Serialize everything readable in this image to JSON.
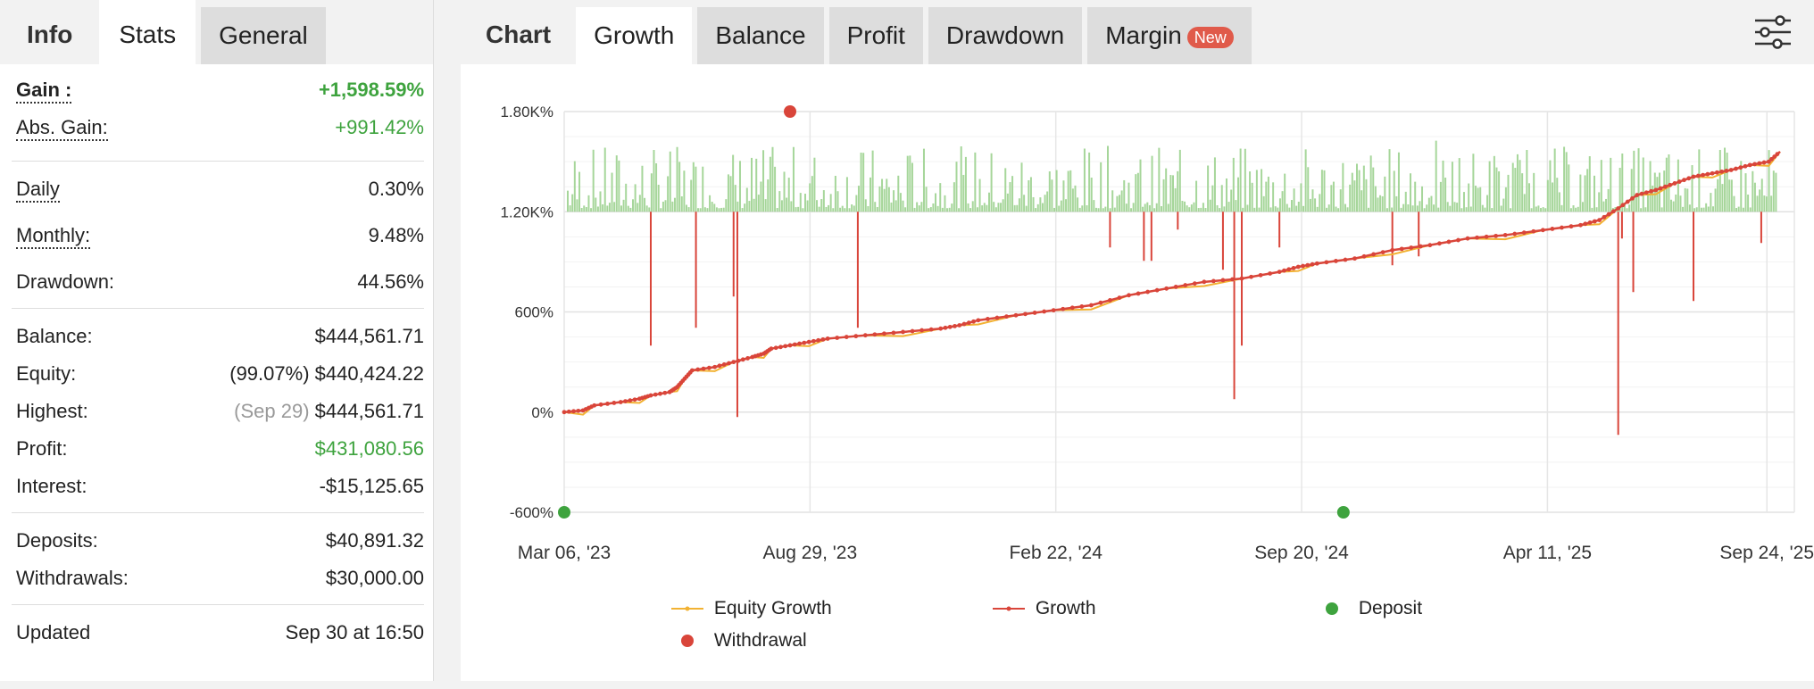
{
  "left_tabs": [
    "Info",
    "Stats",
    "General"
  ],
  "stats": {
    "gain": {
      "label": "Gain :",
      "value": "+1,598.59%"
    },
    "abs_gain": {
      "label": "Abs. Gain:",
      "value": "+991.42%"
    },
    "daily": {
      "label": "Daily",
      "value": "0.30%"
    },
    "monthly": {
      "label": "Monthly:",
      "value": "9.48%"
    },
    "drawdown": {
      "label": "Drawdown:",
      "value": "44.56%"
    },
    "balance": {
      "label": "Balance:",
      "value": "$444,561.71"
    },
    "equity": {
      "label": "Equity:",
      "prefix": "(99.07%)",
      "value": "$440,424.22"
    },
    "highest": {
      "label": "Highest:",
      "prefix": "(Sep 29)",
      "value": "$444,561.71"
    },
    "profit": {
      "label": "Profit:",
      "value": "$431,080.56"
    },
    "interest": {
      "label": "Interest:",
      "value": "-$15,125.65"
    },
    "deposits": {
      "label": "Deposits:",
      "value": "$40,891.32"
    },
    "withdrawals": {
      "label": "Withdrawals:",
      "value": "$30,000.00"
    },
    "updated": {
      "label": "Updated",
      "value": "Sep 30 at 16:50"
    }
  },
  "right_tabs": {
    "chart": "Chart",
    "growth": "Growth",
    "balance": "Balance",
    "profit": "Profit",
    "drawdown": "Drawdown",
    "margin": "Margin",
    "badge": "New"
  },
  "colors": {
    "growth": "#d9453a",
    "equity": "#f2b233",
    "deposit": "#3ea33e",
    "withdrawal": "#d9453a",
    "bars_pos": "#a6d69a"
  },
  "chart_data": {
    "type": "line",
    "y_ticks": [
      "1.80K%",
      "1.20K%",
      "600%",
      "0%",
      "-600%"
    ],
    "x_ticks": [
      "Mar 06, '23",
      "Aug 29, '23",
      "Feb 22, '24",
      "Sep 20, '24",
      "Apr 11, '25",
      "Sep 24, '25"
    ],
    "ylim": [
      -600,
      1800
    ],
    "series": [
      {
        "name": "Equity Growth"
      },
      {
        "name": "Growth",
        "points": [
          [
            0,
            0
          ],
          [
            5,
            10
          ],
          [
            8,
            40
          ],
          [
            15,
            60
          ],
          [
            20,
            80
          ],
          [
            23,
            100
          ],
          [
            28,
            120
          ],
          [
            30,
            150
          ],
          [
            32,
            200
          ],
          [
            34,
            250
          ],
          [
            40,
            270
          ],
          [
            45,
            300
          ],
          [
            50,
            330
          ],
          [
            53,
            350
          ],
          [
            55,
            380
          ],
          [
            60,
            400
          ],
          [
            65,
            420
          ],
          [
            70,
            440
          ],
          [
            80,
            460
          ],
          [
            90,
            480
          ],
          [
            100,
            500
          ],
          [
            105,
            520
          ],
          [
            110,
            550
          ],
          [
            120,
            580
          ],
          [
            130,
            610
          ],
          [
            140,
            640
          ],
          [
            150,
            700
          ],
          [
            160,
            740
          ],
          [
            170,
            780
          ],
          [
            180,
            800
          ],
          [
            190,
            840
          ],
          [
            195,
            870
          ],
          [
            200,
            890
          ],
          [
            210,
            920
          ],
          [
            220,
            970
          ],
          [
            230,
            1000
          ],
          [
            240,
            1040
          ],
          [
            250,
            1060
          ],
          [
            260,
            1090
          ],
          [
            270,
            1120
          ],
          [
            275,
            1150
          ],
          [
            280,
            1220
          ],
          [
            285,
            1300
          ],
          [
            290,
            1330
          ],
          [
            295,
            1370
          ],
          [
            300,
            1410
          ],
          [
            305,
            1430
          ],
          [
            310,
            1450
          ],
          [
            315,
            1480
          ],
          [
            320,
            1500
          ],
          [
            323,
            1560
          ]
        ]
      },
      {
        "name": "Deposit",
        "points": [
          [
            0,
            -600
          ],
          [
            207,
            -600
          ]
        ]
      },
      {
        "name": "Withdrawal",
        "points": [
          [
            60,
            1800
          ]
        ]
      }
    ]
  }
}
